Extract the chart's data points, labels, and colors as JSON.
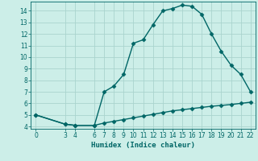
{
  "xlabel": "Humidex (Indice chaleur)",
  "bg_color": "#cceee8",
  "line_color": "#006666",
  "grid_color": "#aad4ce",
  "xlim": [
    -0.5,
    22.5
  ],
  "ylim": [
    3.8,
    14.8
  ],
  "yticks": [
    4,
    5,
    6,
    7,
    8,
    9,
    10,
    11,
    12,
    13,
    14
  ],
  "xticks": [
    0,
    3,
    4,
    6,
    7,
    8,
    9,
    10,
    11,
    12,
    13,
    14,
    15,
    16,
    17,
    18,
    19,
    20,
    21,
    22
  ],
  "curve1_x": [
    0,
    3,
    4,
    6,
    7,
    8,
    9,
    10,
    11,
    12,
    13,
    14,
    15,
    16,
    17,
    18,
    19,
    20,
    21,
    22
  ],
  "curve1_y": [
    5.0,
    4.2,
    4.1,
    4.1,
    7.0,
    7.5,
    8.5,
    11.2,
    11.5,
    12.8,
    14.0,
    14.2,
    14.5,
    14.4,
    13.7,
    12.0,
    10.5,
    9.3,
    8.5,
    7.0
  ],
  "curve2_x": [
    0,
    3,
    4,
    6,
    7,
    8,
    9,
    10,
    11,
    12,
    13,
    14,
    15,
    16,
    17,
    18,
    19,
    20,
    21,
    22
  ],
  "curve2_y": [
    5.0,
    4.2,
    4.1,
    4.1,
    4.3,
    4.45,
    4.6,
    4.75,
    4.9,
    5.05,
    5.2,
    5.35,
    5.45,
    5.55,
    5.65,
    5.75,
    5.82,
    5.9,
    6.0,
    6.1
  ],
  "marker": "D",
  "markersize": 2.5,
  "linewidth": 1.0
}
